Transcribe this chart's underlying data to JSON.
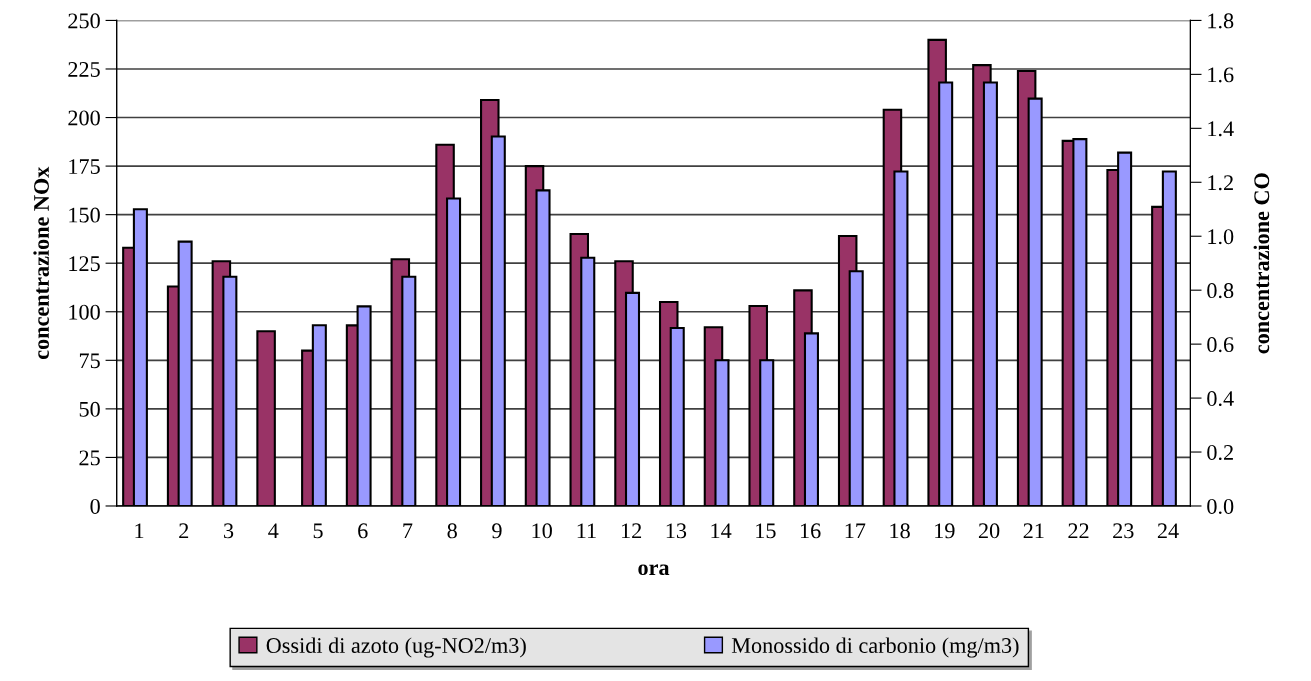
{
  "chart_data": {
    "type": "bar",
    "xlabel": "ora",
    "ylabel": "concentrazione NOx",
    "y2label": "concentrazione CO",
    "categories": [
      "1",
      "2",
      "3",
      "4",
      "5",
      "6",
      "7",
      "8",
      "9",
      "10",
      "11",
      "12",
      "13",
      "14",
      "15",
      "16",
      "17",
      "18",
      "19",
      "20",
      "21",
      "22",
      "23",
      "24"
    ],
    "series": [
      {
        "name": "Ossidi di azoto (ug-NO2/m3)",
        "color": "#993366",
        "values": [
          133,
          113,
          126,
          90,
          80,
          93,
          127,
          186,
          209,
          175,
          140,
          126,
          105,
          92,
          103,
          111,
          139,
          204,
          240,
          227,
          224,
          188,
          173,
          154
        ]
      },
      {
        "name": "Monossido di carbonio (mg/m3)",
        "color": "#9999ff",
        "axis": "y2",
        "values": [
          1.1,
          0.98,
          0.85,
          null,
          0.67,
          0.74,
          0.85,
          1.14,
          1.37,
          1.17,
          0.92,
          0.79,
          0.66,
          0.54,
          0.54,
          0.64,
          0.87,
          1.24,
          1.57,
          1.57,
          1.51,
          1.36,
          1.31,
          1.24
        ]
      }
    ],
    "ylim": [
      0,
      250
    ],
    "yticks": [
      0,
      25,
      50,
      75,
      100,
      125,
      150,
      175,
      200,
      225,
      250
    ],
    "y2lim": [
      0,
      1.8
    ],
    "y2ticks": [
      {
        "value": 0,
        "label": "0.0"
      },
      {
        "value": 0.2,
        "label": "0.2"
      },
      {
        "value": 0.4,
        "label": "0.4"
      },
      {
        "value": 0.6,
        "label": "0.6"
      },
      {
        "value": 0.8,
        "label": "0.8"
      },
      {
        "value": 1.0,
        "label": "1.0"
      },
      {
        "value": 1.2,
        "label": "1.2"
      },
      {
        "value": 1.4,
        "label": "1.4"
      },
      {
        "value": 1.6,
        "label": "1.6"
      },
      {
        "value": 1.8,
        "label": "1.8"
      }
    ],
    "grid": "y",
    "legend": "bottom"
  }
}
